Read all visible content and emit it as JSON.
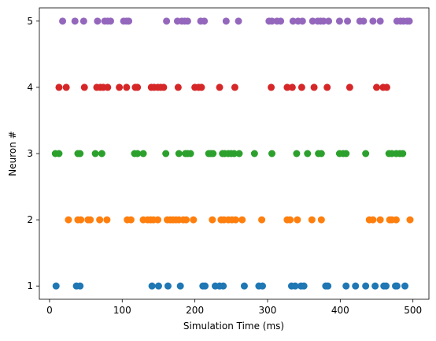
{
  "chart_data": {
    "type": "scatter",
    "xlabel": "Simulation Time (ms)",
    "ylabel": "Neuron #",
    "xlim": [
      -14,
      522
    ],
    "ylim": [
      0.8,
      5.2
    ],
    "xticks": [
      0,
      100,
      200,
      300,
      400,
      500
    ],
    "yticks": [
      1,
      2,
      3,
      4,
      5
    ],
    "series": [
      {
        "color": "#1f77b4",
        "x": [
          9,
          37,
          42,
          141,
          150,
          163,
          180,
          211,
          214,
          228,
          234,
          239,
          268,
          288,
          293,
          333,
          338,
          346,
          350,
          380,
          383,
          408,
          421,
          435,
          448,
          460,
          463,
          476,
          478,
          489
        ],
        "values": [
          1,
          1,
          1,
          1,
          1,
          1,
          1,
          1,
          1,
          1,
          1,
          1,
          1,
          1,
          1,
          1,
          1,
          1,
          1,
          1,
          1,
          1,
          1,
          1,
          1,
          1,
          1,
          1,
          1,
          1
        ]
      },
      {
        "color": "#ff7f0e",
        "x": [
          26,
          39,
          43,
          53,
          56,
          69,
          79,
          107,
          112,
          129,
          135,
          139,
          143,
          149,
          162,
          166,
          170,
          174,
          178,
          184,
          188,
          198,
          224,
          236,
          240,
          246,
          251,
          256,
          265,
          292,
          327,
          331,
          341,
          361,
          374,
          440,
          445,
          455,
          468,
          471,
          477,
          496
        ],
        "values": [
          2,
          2,
          2,
          2,
          2,
          2,
          2,
          2,
          2,
          2,
          2,
          2,
          2,
          2,
          2,
          2,
          2,
          2,
          2,
          2,
          2,
          2,
          2,
          2,
          2,
          2,
          2,
          2,
          2,
          2,
          2,
          2,
          2,
          2,
          2,
          2,
          2,
          2,
          2,
          2,
          2,
          2
        ]
      },
      {
        "color": "#2ca02c",
        "x": [
          8,
          13,
          39,
          42,
          63,
          72,
          117,
          121,
          129,
          160,
          178,
          187,
          190,
          194,
          219,
          222,
          225,
          238,
          241,
          246,
          250,
          254,
          261,
          282,
          306,
          340,
          355,
          370,
          374,
          399,
          404,
          408,
          435,
          467,
          471,
          477,
          482,
          486
        ],
        "values": [
          3,
          3,
          3,
          3,
          3,
          3,
          3,
          3,
          3,
          3,
          3,
          3,
          3,
          3,
          3,
          3,
          3,
          3,
          3,
          3,
          3,
          3,
          3,
          3,
          3,
          3,
          3,
          3,
          3,
          3,
          3,
          3,
          3,
          3,
          3,
          3,
          3,
          3
        ]
      },
      {
        "color": "#d62728",
        "x": [
          13,
          23,
          48,
          65,
          70,
          74,
          80,
          96,
          106,
          118,
          121,
          140,
          144,
          149,
          153,
          157,
          177,
          200,
          205,
          209,
          234,
          255,
          305,
          327,
          334,
          347,
          364,
          382,
          413,
          450,
          459,
          464
        ],
        "values": [
          4,
          4,
          4,
          4,
          4,
          4,
          4,
          4,
          4,
          4,
          4,
          4,
          4,
          4,
          4,
          4,
          4,
          4,
          4,
          4,
          4,
          4,
          4,
          4,
          4,
          4,
          4,
          4,
          4,
          4,
          4,
          4
        ]
      },
      {
        "color": "#9467bd",
        "x": [
          18,
          35,
          47,
          66,
          76,
          80,
          84,
          102,
          106,
          109,
          161,
          176,
          182,
          186,
          190,
          208,
          213,
          243,
          260,
          302,
          306,
          313,
          318,
          335,
          342,
          348,
          362,
          369,
          373,
          377,
          384,
          399,
          410,
          427,
          432,
          445,
          455,
          478,
          483,
          487,
          492,
          495
        ],
        "values": [
          5,
          5,
          5,
          5,
          5,
          5,
          5,
          5,
          5,
          5,
          5,
          5,
          5,
          5,
          5,
          5,
          5,
          5,
          5,
          5,
          5,
          5,
          5,
          5,
          5,
          5,
          5,
          5,
          5,
          5,
          5,
          5,
          5,
          5,
          5,
          5,
          5,
          5,
          5,
          5,
          5,
          5
        ]
      }
    ]
  }
}
